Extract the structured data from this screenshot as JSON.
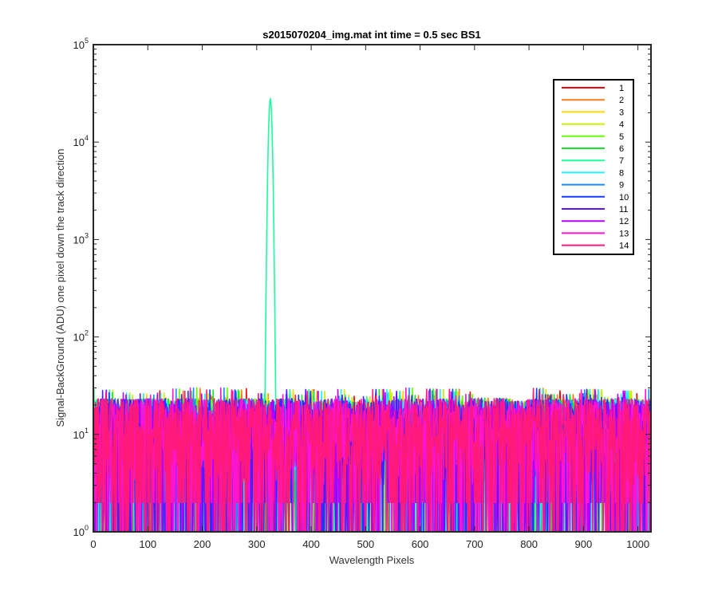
{
  "chart_data": {
    "type": "line",
    "title": "s2015070204_img.mat int time = 0.5 sec   BS1",
    "xlabel": "Wavelength Pixels",
    "ylabel": "Signal-BackGround (ADU) one pixel down the track direction",
    "xlim": [
      0,
      1024
    ],
    "ylim": [
      1,
      100000
    ],
    "yscale": "log",
    "grid": false,
    "legend_position": "top-right",
    "x_ticks": [
      "0",
      "100",
      "200",
      "300",
      "400",
      "500",
      "600",
      "700",
      "800",
      "900",
      "1000"
    ],
    "y_ticks": [
      {
        "base": "10",
        "exp": "0"
      },
      {
        "base": "10",
        "exp": "1"
      },
      {
        "base": "10",
        "exp": "2"
      },
      {
        "base": "10",
        "exp": "3"
      },
      {
        "base": "10",
        "exp": "4"
      },
      {
        "base": "10",
        "exp": "5"
      }
    ],
    "noise_range": [
      1,
      40
    ],
    "peak": {
      "series": "7",
      "x": 325,
      "y": 28000
    },
    "series": [
      {
        "name": "1",
        "color": "#ff0000"
      },
      {
        "name": "2",
        "color": "#ff7a1a"
      },
      {
        "name": "3",
        "color": "#ffd500"
      },
      {
        "name": "4",
        "color": "#c8f000"
      },
      {
        "name": "5",
        "color": "#66ff00"
      },
      {
        "name": "6",
        "color": "#14e632"
      },
      {
        "name": "7",
        "color": "#1aff9c"
      },
      {
        "name": "8",
        "color": "#20f0ff"
      },
      {
        "name": "9",
        "color": "#1a8cff"
      },
      {
        "name": "10",
        "color": "#0f3cff"
      },
      {
        "name": "11",
        "color": "#5a14ff"
      },
      {
        "name": "12",
        "color": "#b400ff"
      },
      {
        "name": "13",
        "color": "#ff14d2"
      },
      {
        "name": "14",
        "color": "#ff1a7a"
      }
    ]
  }
}
